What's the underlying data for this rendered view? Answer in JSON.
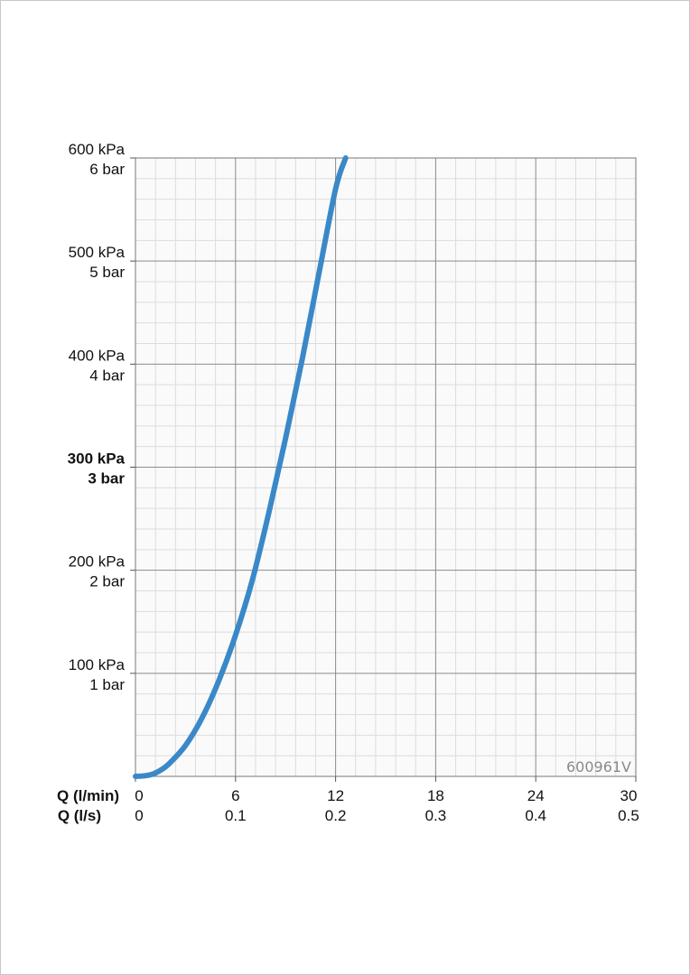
{
  "chart_data": {
    "type": "line",
    "title": "",
    "xlabel_primary": "Q (l/min)",
    "xlabel_secondary": "Q (l/s)",
    "ylabel": "",
    "xlim": [
      0,
      30
    ],
    "ylim": [
      0,
      600
    ],
    "x_ticks_primary": [
      "0",
      "6",
      "12",
      "18",
      "24",
      "30"
    ],
    "x_ticks_secondary": [
      "0",
      "0.1",
      "0.2",
      "0.3",
      "0.4",
      "0.5"
    ],
    "x_tick_values": [
      0,
      6,
      12,
      18,
      24,
      30
    ],
    "y_ticks": [
      {
        "value": 100,
        "kpa": "100 kPa",
        "bar": "1 bar",
        "bold": false
      },
      {
        "value": 200,
        "kpa": "200 kPa",
        "bar": "2 bar",
        "bold": false
      },
      {
        "value": 300,
        "kpa": "300 kPa",
        "bar": "3 bar",
        "bold": true
      },
      {
        "value": 400,
        "kpa": "400 kPa",
        "bar": "4 bar",
        "bold": false
      },
      {
        "value": 500,
        "kpa": "500 kPa",
        "bar": "5 bar",
        "bold": false
      },
      {
        "value": 600,
        "kpa": "600 kPa",
        "bar": "6 bar",
        "bold": false
      }
    ],
    "grid": true,
    "watermark": "600961V",
    "series": [
      {
        "color": "#3a88c8",
        "x": [
          0,
          0.5,
          1,
          1.5,
          2,
          3,
          4,
          5,
          6,
          7,
          8,
          9,
          10,
          11,
          12,
          12.6
        ],
        "y": [
          0,
          0.5,
          2,
          6,
          12,
          30,
          57,
          93,
          137,
          190,
          256,
          328,
          405,
          488,
          570,
          600
        ]
      }
    ]
  }
}
